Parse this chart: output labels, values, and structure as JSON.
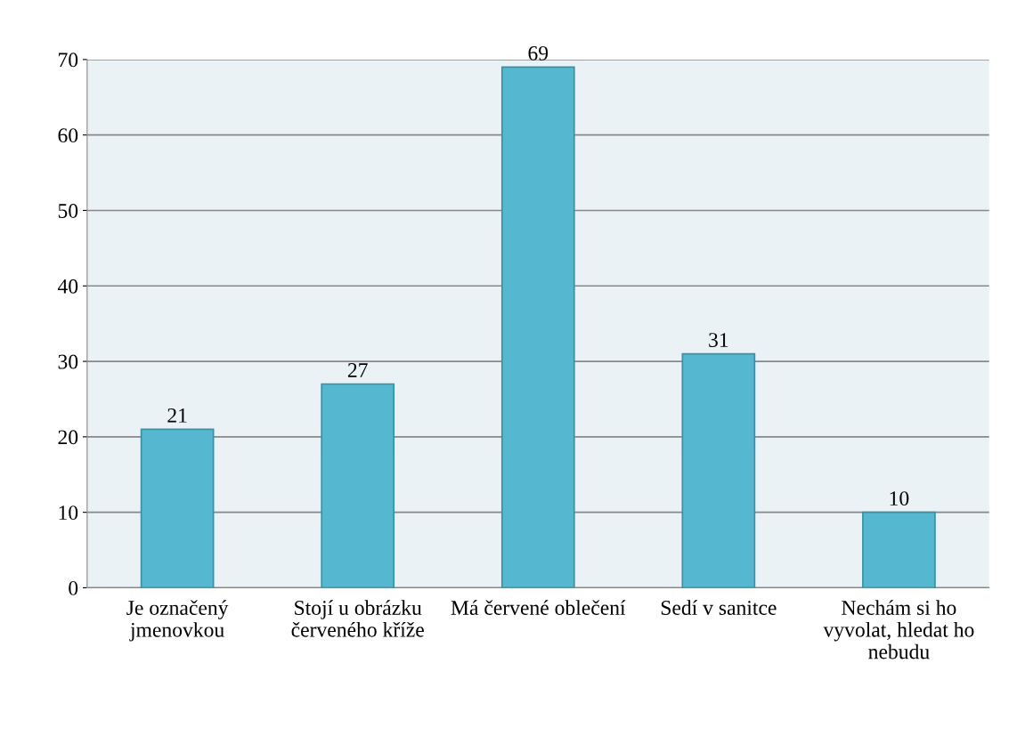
{
  "chart_data": {
    "type": "bar",
    "categories": [
      "Je označený jmenovkou",
      "Stojí u obrázku červeného kříže",
      "Má červené oblečení",
      "Sedí v sanitce",
      "Nechám si ho vyvolat, hledat ho nebudu"
    ],
    "values": [
      21,
      27,
      69,
      31,
      10
    ],
    "color": "#55b8d0",
    "ylim": [
      0,
      70
    ],
    "yticks": [
      0,
      10,
      20,
      30,
      40,
      50,
      60,
      70
    ],
    "grid": "y",
    "data_labels": true
  }
}
